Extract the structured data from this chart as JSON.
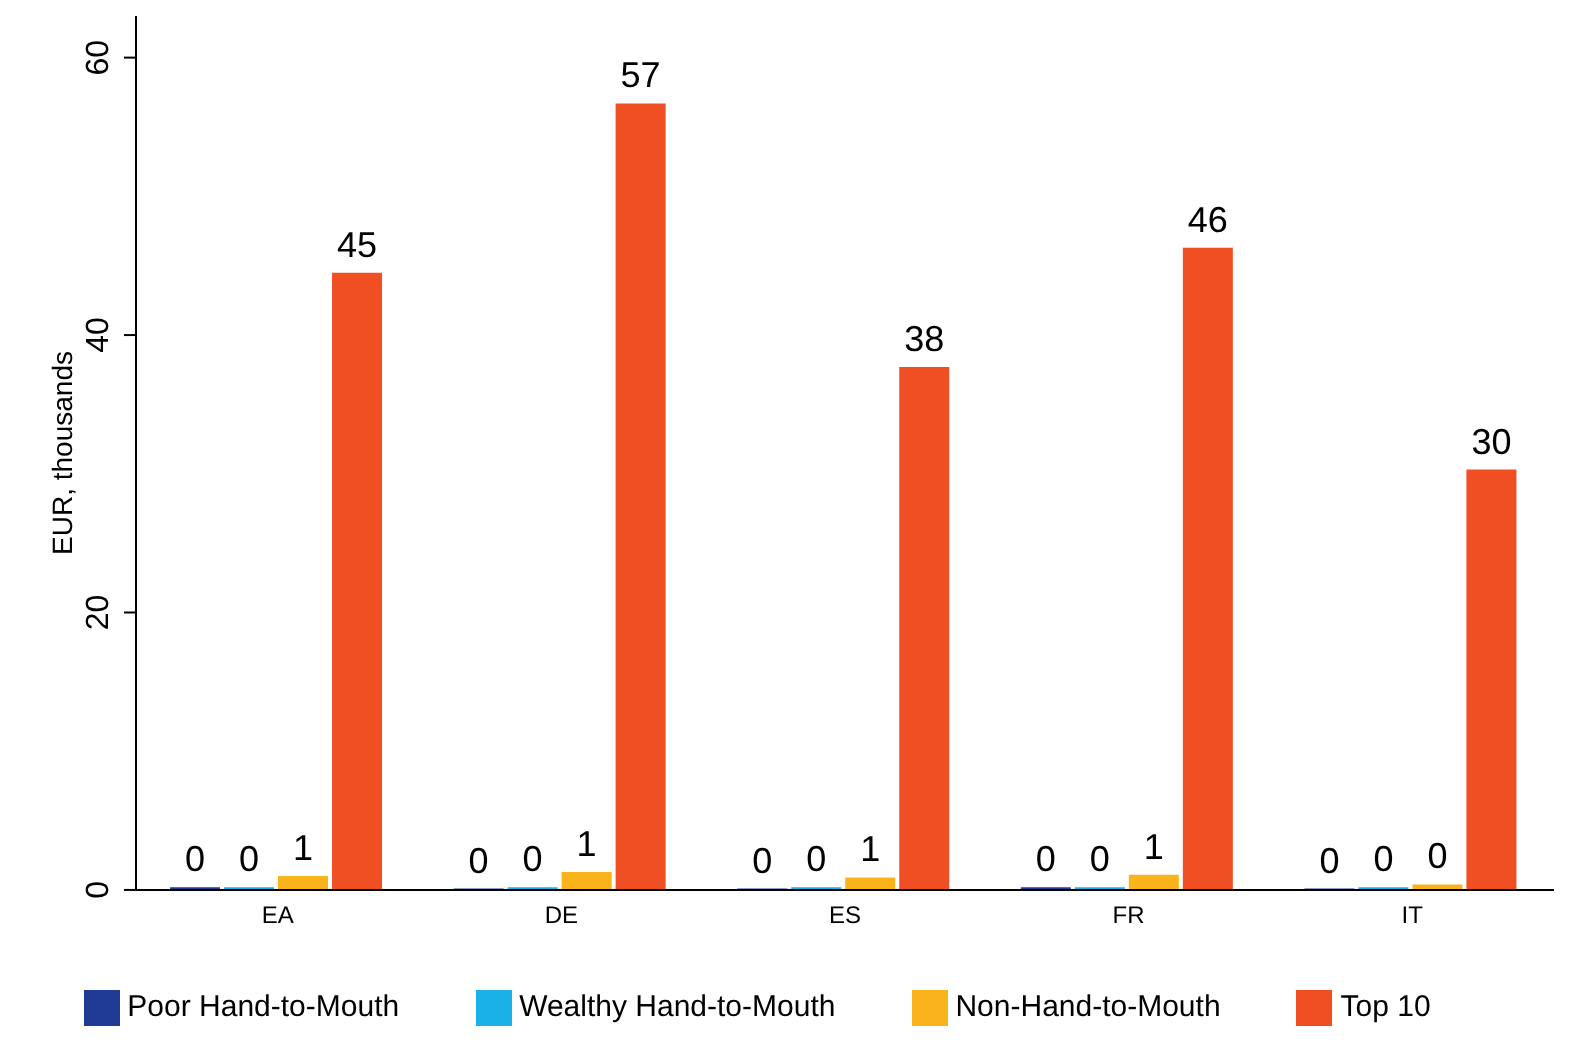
{
  "chart_data": {
    "type": "bar",
    "ylabel": "EUR, thousands",
    "categories": [
      "EA",
      "DE",
      "ES",
      "FR",
      "IT"
    ],
    "series": [
      {
        "name": "Poor Hand-to-Mouth",
        "color": "#1f3a93",
        "values": [
          0.2,
          0.1,
          0.1,
          0.2,
          0.1
        ],
        "value_labels": [
          "0",
          "0",
          "0",
          "0",
          "0"
        ]
      },
      {
        "name": "Wealthy Hand-to-Mouth",
        "color": "#1ab0e8",
        "values": [
          0.2,
          0.2,
          0.2,
          0.2,
          0.2
        ],
        "value_labels": [
          "0",
          "0",
          "0",
          "0",
          "0"
        ]
      },
      {
        "name": "Non-Hand-to-Mouth",
        "color": "#f9b31b",
        "values": [
          1.0,
          1.3,
          0.9,
          1.1,
          0.4
        ],
        "value_labels": [
          "1",
          "1",
          "1",
          "1",
          "0"
        ]
      },
      {
        "name": "Top 10",
        "color": "#f04e23",
        "values": [
          44.5,
          56.7,
          37.7,
          46.3,
          30.3
        ],
        "value_labels": [
          "45",
          "57",
          "38",
          "46",
          "30"
        ]
      }
    ],
    "ylim": [
      0,
      63
    ],
    "yticks": [
      0,
      20,
      40,
      60
    ],
    "grid": false,
    "legend": "bottom"
  }
}
